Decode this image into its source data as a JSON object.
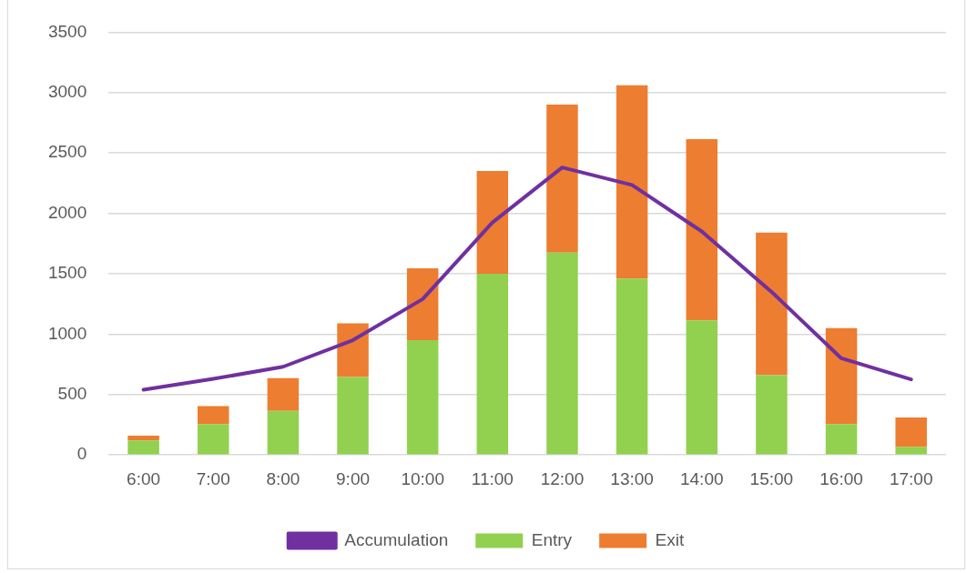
{
  "chart_data": {
    "type": "bar",
    "stacked": true,
    "categories": [
      "6:00",
      "7:00",
      "8:00",
      "9:00",
      "10:00",
      "11:00",
      "12:00",
      "13:00",
      "14:00",
      "15:00",
      "16:00",
      "17:00"
    ],
    "series": [
      {
        "name": "Entry",
        "color": "#92d050",
        "values": [
          120,
          255,
          365,
          645,
          950,
          1500,
          1675,
          1460,
          1115,
          660,
          255,
          65
        ]
      },
      {
        "name": "Exit",
        "color": "#ed7d31",
        "values": [
          40,
          150,
          270,
          445,
          595,
          850,
          1225,
          1600,
          1500,
          1180,
          795,
          245
        ]
      },
      {
        "name": "Accumulation",
        "type": "line",
        "color": "#7030a0",
        "values": [
          540,
          630,
          730,
          950,
          1290,
          1925,
          2380,
          2235,
          1850,
          1350,
          800,
          625
        ]
      }
    ],
    "ylim": [
      0,
      3500
    ],
    "yticks": [
      0,
      500,
      1000,
      1500,
      2000,
      2500,
      3000,
      3500
    ],
    "grid": "y",
    "legend": "bottom",
    "marker": "none"
  }
}
